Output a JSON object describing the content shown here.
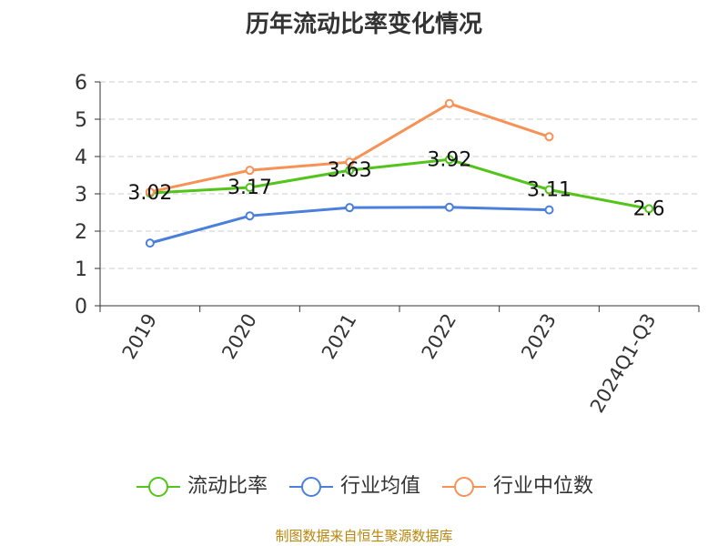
{
  "chart_data": {
    "type": "line",
    "title": "历年流动比率变化情况",
    "categories": [
      "2019",
      "2020",
      "2021",
      "2022",
      "2023",
      "2024Q1-Q3"
    ],
    "ylim": [
      0,
      6
    ],
    "yticks": [
      "0",
      "1",
      "2",
      "3",
      "4",
      "5",
      "6"
    ],
    "grid": true,
    "legend_position": "bottom",
    "series": [
      {
        "name": "流动比率",
        "color": "#52c41a",
        "values": [
          3.02,
          3.17,
          3.63,
          3.92,
          3.11,
          2.6
        ],
        "data_labels": [
          "3.02",
          "3.17",
          "3.63",
          "3.92",
          "3.11",
          "2.6"
        ]
      },
      {
        "name": "行业均值",
        "color": "#4a7fdb",
        "values": [
          1.68,
          2.41,
          2.63,
          2.64,
          2.57,
          null
        ]
      },
      {
        "name": "行业中位数",
        "color": "#f79256",
        "values": [
          3.05,
          3.63,
          3.85,
          5.42,
          4.53,
          null
        ]
      }
    ]
  },
  "source": "制图数据来自恒生聚源数据库"
}
